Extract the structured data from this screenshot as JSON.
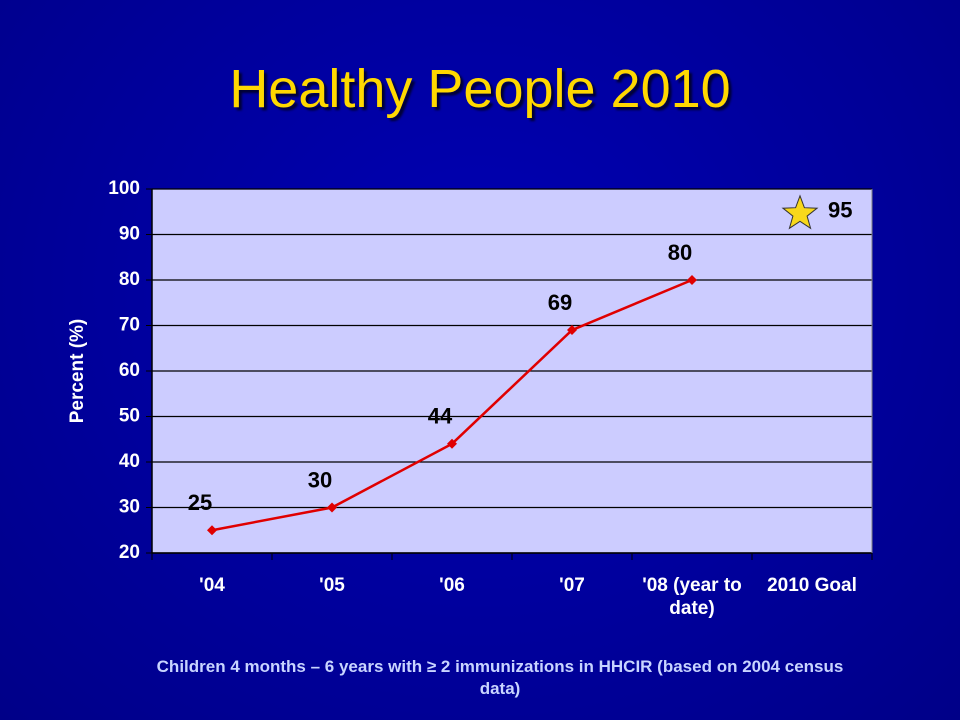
{
  "chart_data": {
    "type": "line",
    "title": "Healthy People 2010",
    "y_label": "Percent (%)",
    "caption": "Children 4 months – 6 years with ≥ 2 immunizations in HHCIR (based on 2004 census data)",
    "categories": [
      "'04",
      "'05",
      "'06",
      "'07",
      "'08 (year to date)",
      "2010 Goal"
    ],
    "series": [
      {
        "color": "#e00000",
        "marker": "diamond",
        "values": [
          25,
          30,
          44,
          69,
          80,
          null
        ]
      },
      {
        "color": "#f8d81c",
        "marker": "star",
        "values": [
          null,
          null,
          null,
          null,
          null,
          95
        ]
      }
    ],
    "ylim": [
      20,
      100
    ],
    "yticks": [
      20,
      30,
      40,
      50,
      60,
      70,
      80,
      90,
      100
    ],
    "grid": true
  }
}
